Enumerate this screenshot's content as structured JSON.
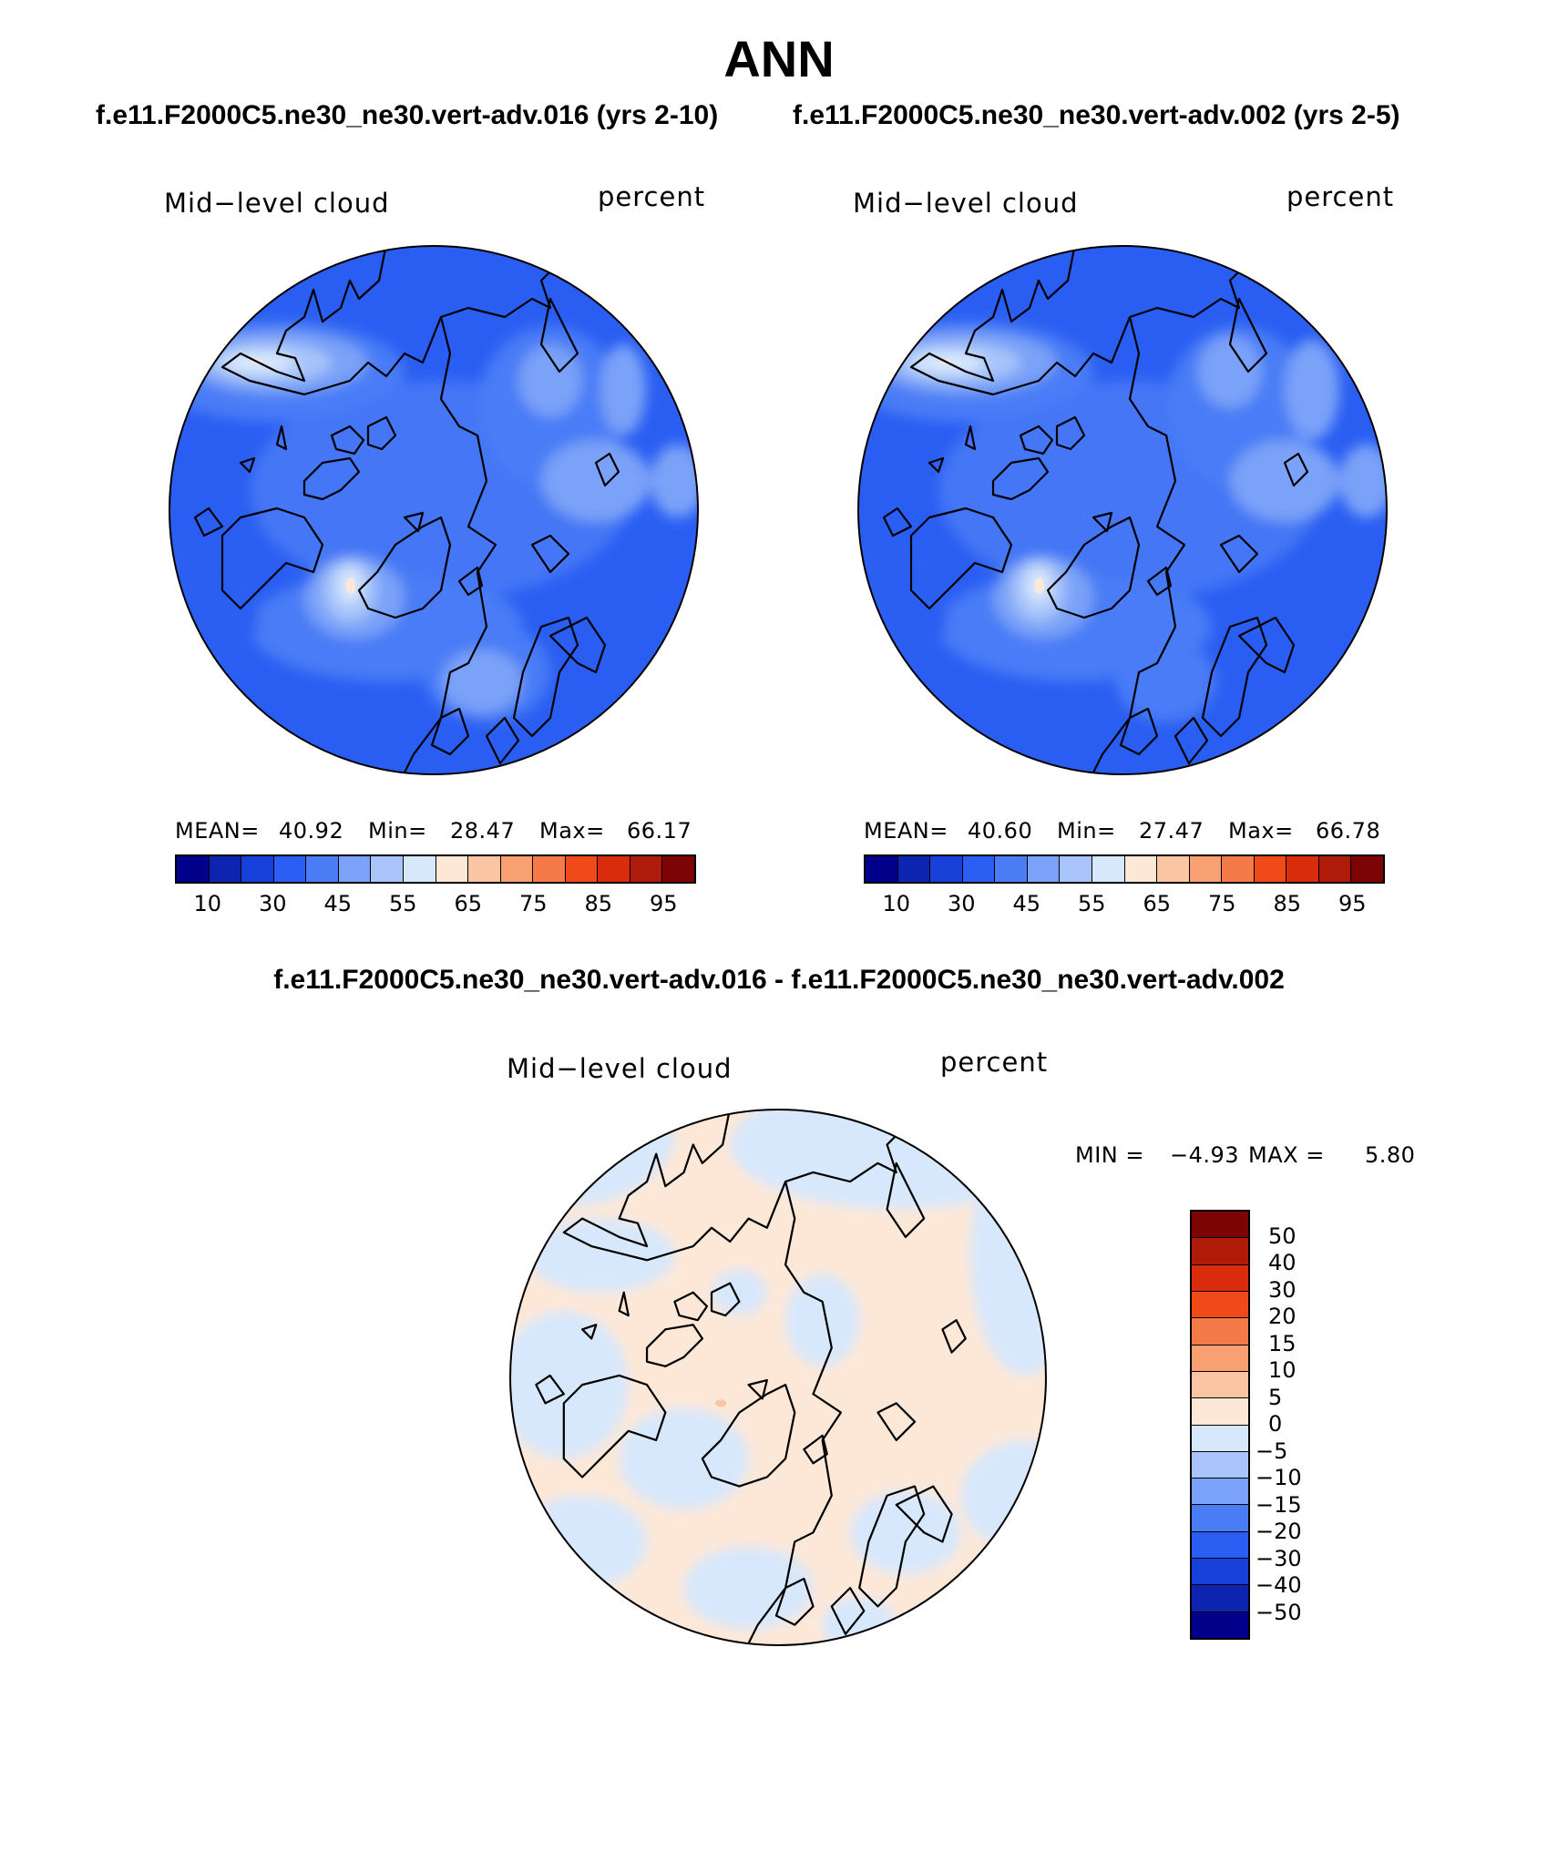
{
  "page": {
    "title": "ANN",
    "case_a_title": "f.e11.F2000C5.ne30_ne30.vert-adv.016 (yrs 2-10)",
    "case_b_title": "f.e11.F2000C5.ne30_ne30.vert-adv.002 (yrs 2-5)",
    "diff_title": "f.e11.F2000C5.ne30_ne30.vert-adv.016 - f.e11.F2000C5.ne30_ne30.vert-adv.002"
  },
  "panels": {
    "a": {
      "variable": "Mid−level cloud",
      "units": "percent",
      "mean_label": "MEAN=",
      "mean": "40.92",
      "min_label": "Min=",
      "min": "28.47",
      "max_label": "Max=",
      "max": "66.17"
    },
    "b": {
      "variable": "Mid−level cloud",
      "units": "percent",
      "mean_label": "MEAN=",
      "mean": "40.60",
      "min_label": "Min=",
      "min": "27.47",
      "max_label": "Max=",
      "max": "66.78"
    },
    "diff": {
      "variable": "Mid−level cloud",
      "units": "percent",
      "min_label": "MIN =",
      "min": "−4.93",
      "max_label": "MAX =",
      "max": "5.80"
    }
  },
  "colorbar_abs": {
    "ticks": [
      "10",
      "30",
      "45",
      "55",
      "65",
      "75",
      "85",
      "95"
    ],
    "colors": [
      "#00008a",
      "#0c24b0",
      "#1640d8",
      "#2a5ef2",
      "#4a7cf6",
      "#7aa2f8",
      "#a8c4fa",
      "#d8e8fc",
      "#fde8d8",
      "#fbc4a2",
      "#f8a072",
      "#f47a48",
      "#f04a18",
      "#d82c0c",
      "#b01a08",
      "#7c0404"
    ]
  },
  "colorbar_diff": {
    "ticks": [
      "50",
      "40",
      "30",
      "20",
      "15",
      "10",
      "5",
      "0",
      "−5",
      "−10",
      "−15",
      "−20",
      "−30",
      "−40",
      "−50"
    ],
    "colors": [
      "#7c0404",
      "#b01a08",
      "#d82c0c",
      "#f04a18",
      "#f47a48",
      "#f8a072",
      "#fbc4a2",
      "#fde8d8",
      "#d8e8fc",
      "#a8c4fa",
      "#7aa2f8",
      "#4a7cf6",
      "#2a5ef2",
      "#1640d8",
      "#0c24b0",
      "#00008a"
    ]
  }
}
